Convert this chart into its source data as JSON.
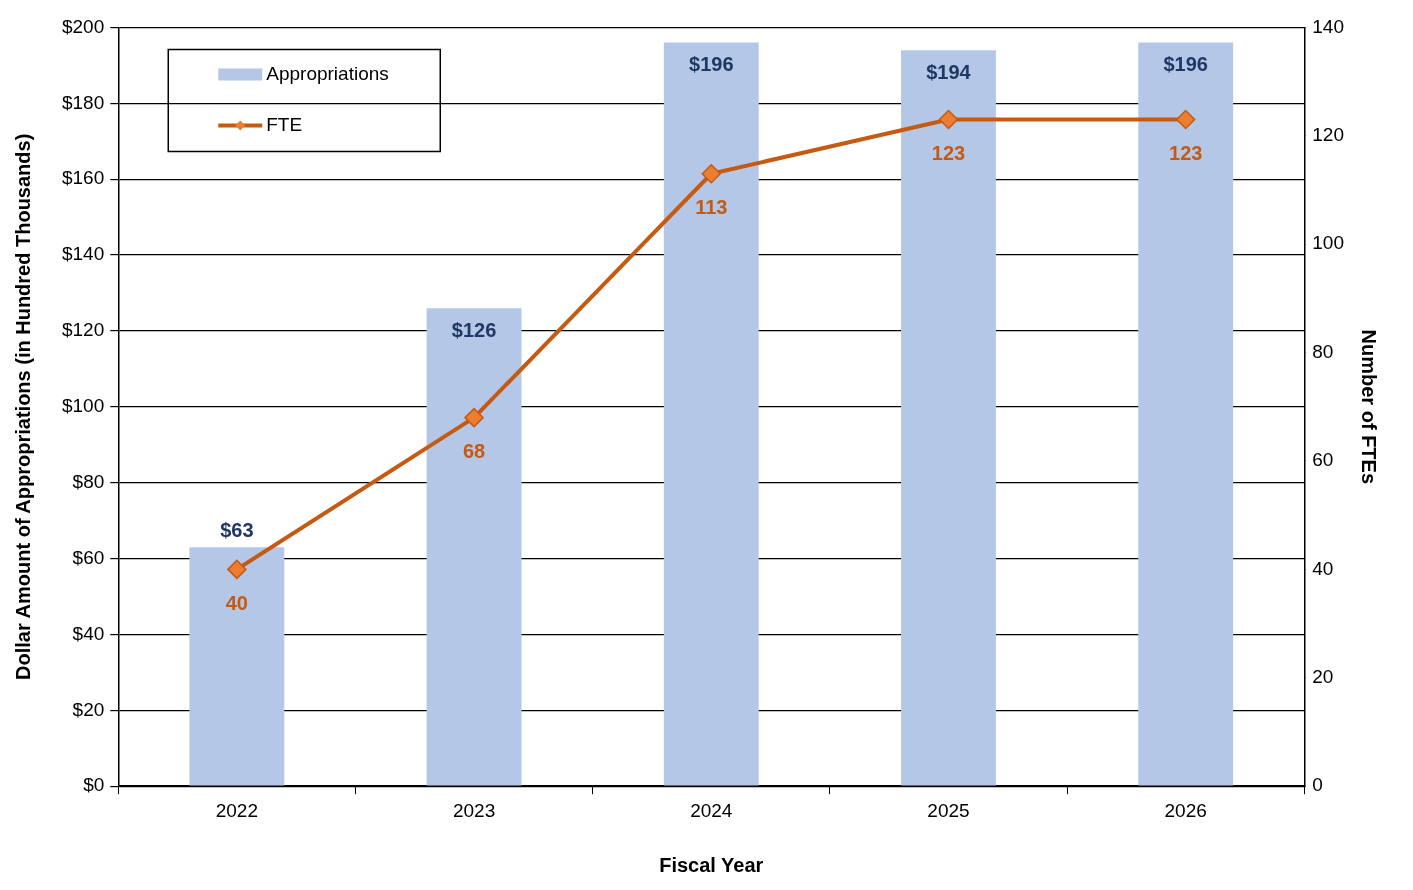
{
  "chart_data": {
    "type": "bar",
    "xlabel": "Fiscal Year",
    "ylabel": "Dollar Amount of Appropriations (in Hundred Thousands)",
    "y2label": "Number of FTEs",
    "categories": [
      "2022",
      "2023",
      "2024",
      "2025",
      "2026"
    ],
    "series": [
      {
        "name": "Appropriations",
        "color": "#b4c7e7",
        "values": [
          63,
          126,
          196,
          194,
          196
        ],
        "value_labels": [
          "$63",
          "$126",
          "$196",
          "$194",
          "$196"
        ]
      },
      {
        "name": "FTE",
        "type": "line",
        "axis": "y2",
        "color": "#c55a11",
        "marker": "diamond",
        "values": [
          40,
          68,
          113,
          123,
          123
        ],
        "value_labels": [
          "40",
          "68",
          "113",
          "123",
          "123"
        ]
      }
    ],
    "ylim": [
      0,
      200
    ],
    "yticks": [
      {
        "value": 0,
        "label": "$0"
      },
      {
        "value": 20,
        "label": "$20"
      },
      {
        "value": 40,
        "label": "$40"
      },
      {
        "value": 60,
        "label": "$60"
      },
      {
        "value": 80,
        "label": "$80"
      },
      {
        "value": 100,
        "label": "$100"
      },
      {
        "value": 120,
        "label": "$120"
      },
      {
        "value": 140,
        "label": "$140"
      },
      {
        "value": 160,
        "label": "$160"
      },
      {
        "value": 180,
        "label": "$180"
      },
      {
        "value": 200,
        "label": "$200"
      }
    ],
    "y2lim": [
      0,
      140
    ],
    "y2ticks": [
      0,
      20,
      40,
      60,
      80,
      100,
      120,
      140
    ],
    "grid": "y",
    "legend": "top left"
  }
}
